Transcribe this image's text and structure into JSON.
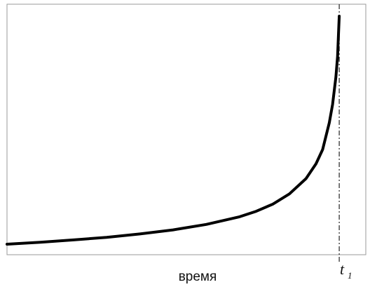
{
  "chart_data": {
    "type": "line",
    "title": "",
    "xlabel": "время",
    "ylabel": "",
    "xlim": [
      0,
      1.08
    ],
    "ylim": [
      0,
      1.05
    ],
    "grid": false,
    "legend": "none",
    "line_color": "#000000",
    "vline": {
      "x": 1.0,
      "label": "t",
      "label_sub": "1",
      "style": "dash-dot"
    },
    "series": [
      {
        "x": [
          0,
          0.1,
          0.2,
          0.3,
          0.4,
          0.5,
          0.6,
          0.7,
          0.75,
          0.8,
          0.85,
          0.9,
          0.93,
          0.95,
          0.97,
          0.98,
          0.99,
          0.995,
          1.0
        ],
        "y": [
          0.044,
          0.052,
          0.062,
          0.073,
          0.087,
          0.104,
          0.127,
          0.159,
          0.182,
          0.212,
          0.255,
          0.319,
          0.381,
          0.441,
          0.553,
          0.63,
          0.744,
          0.83,
          1.0
        ]
      }
    ]
  }
}
